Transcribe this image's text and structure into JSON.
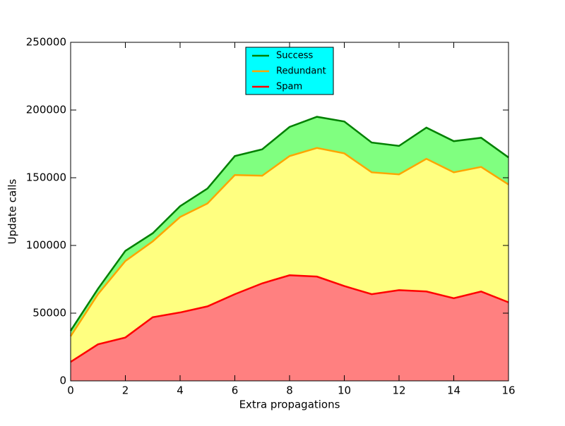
{
  "chart_data": {
    "type": "stacked_area",
    "x_label": "Extra propagations",
    "y_label": "Update calls",
    "x": [
      0,
      1,
      2,
      3,
      4,
      5,
      6,
      7,
      8,
      9,
      10,
      11,
      12,
      13,
      14,
      15,
      16
    ],
    "series": [
      {
        "name": "Success",
        "color": "#008000",
        "fill": "#80ff80",
        "values": [
          4000,
          4000,
          7500,
          6000,
          8000,
          11000,
          14000,
          19500,
          21500,
          23000,
          23500,
          22000,
          21000,
          23000,
          23000,
          21500,
          20000
        ]
      },
      {
        "name": "Redundant",
        "color": "#ffa500",
        "fill": "#ffff80",
        "values": [
          19000,
          37000,
          56500,
          56000,
          70500,
          76000,
          88000,
          79500,
          88000,
          95000,
          98000,
          90000,
          85500,
          98000,
          93000,
          92000,
          87000
        ]
      },
      {
        "name": "Spam",
        "color": "#ff0000",
        "fill": "#ff8080",
        "values": [
          14000,
          27000,
          32000,
          47000,
          50500,
          55000,
          64000,
          72000,
          78000,
          77000,
          70000,
          64000,
          67000,
          66000,
          61000,
          66000,
          58000
        ]
      }
    ],
    "xlim": [
      0,
      16
    ],
    "xticks": [
      0,
      2,
      4,
      6,
      8,
      10,
      12,
      14,
      16
    ],
    "ylim": [
      0,
      250000
    ],
    "yticks": [
      0,
      50000,
      100000,
      150000,
      200000,
      250000
    ],
    "legend": "upper center",
    "legend_color": "#00ffff"
  }
}
